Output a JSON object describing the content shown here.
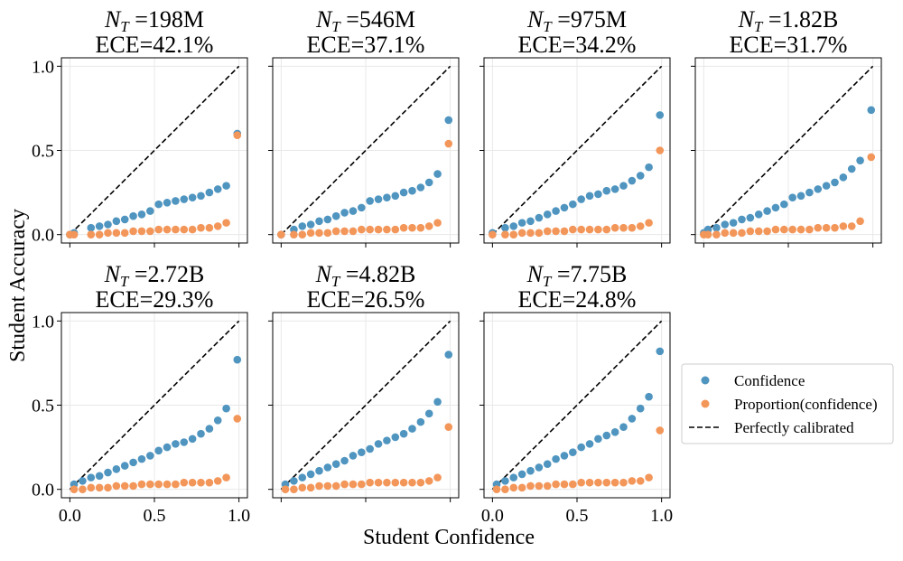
{
  "figure": {
    "ylabel": "Student Accuracy",
    "xlabel": "Student Confidence",
    "colors": {
      "confidence": "#4f95c0",
      "proportion": "#f3965a",
      "diagonal": "#000000",
      "grid": "#e8e8e8",
      "axes": "#000000"
    },
    "legend": {
      "items": [
        "Confidence",
        "Proportion(confidence)",
        "Perfectly calibrated"
      ]
    }
  },
  "chart_data": [
    {
      "type": "scatter",
      "title_nt": "198M",
      "title_ece": "ECE=42.1%",
      "xlim": [
        -0.05,
        1.05
      ],
      "ylim": [
        -0.05,
        1.05
      ],
      "xticks": [
        "0.0",
        "0.5",
        "1.0"
      ],
      "yticks": [
        "0.0",
        "0.5",
        "1.0"
      ],
      "show_xticklabels": false,
      "show_yticklabels": true,
      "series": [
        {
          "name": "Confidence",
          "x": [
            0.0,
            0.025,
            0.125,
            0.175,
            0.225,
            0.275,
            0.325,
            0.375,
            0.425,
            0.475,
            0.525,
            0.575,
            0.625,
            0.675,
            0.725,
            0.775,
            0.825,
            0.875,
            0.925,
            0.99
          ],
          "y": [
            0.0,
            0.01,
            0.04,
            0.05,
            0.06,
            0.08,
            0.09,
            0.11,
            0.12,
            0.14,
            0.18,
            0.19,
            0.2,
            0.21,
            0.22,
            0.23,
            0.25,
            0.27,
            0.29,
            0.6
          ]
        },
        {
          "name": "Proportion(confidence)",
          "x": [
            0.0,
            0.025,
            0.125,
            0.175,
            0.225,
            0.275,
            0.325,
            0.375,
            0.425,
            0.475,
            0.525,
            0.575,
            0.625,
            0.675,
            0.725,
            0.775,
            0.825,
            0.875,
            0.925,
            0.99
          ],
          "y": [
            0.0,
            0.0,
            0.0,
            0.0,
            0.01,
            0.01,
            0.01,
            0.02,
            0.02,
            0.02,
            0.03,
            0.03,
            0.03,
            0.03,
            0.03,
            0.04,
            0.04,
            0.05,
            0.07,
            0.59
          ]
        }
      ]
    },
    {
      "type": "scatter",
      "title_nt": "546M",
      "title_ece": "ECE=37.1%",
      "xlim": [
        -0.05,
        1.05
      ],
      "ylim": [
        -0.05,
        1.05
      ],
      "xticks": [
        "0.0",
        "0.5",
        "1.0"
      ],
      "yticks": [
        "0.0",
        "0.5",
        "1.0"
      ],
      "show_xticklabels": false,
      "show_yticklabels": false,
      "series": [
        {
          "name": "Confidence",
          "x": [
            0.0,
            0.075,
            0.125,
            0.175,
            0.225,
            0.275,
            0.325,
            0.375,
            0.425,
            0.475,
            0.525,
            0.575,
            0.625,
            0.675,
            0.725,
            0.775,
            0.825,
            0.875,
            0.925,
            0.99
          ],
          "y": [
            0.0,
            0.03,
            0.05,
            0.06,
            0.08,
            0.09,
            0.11,
            0.13,
            0.14,
            0.16,
            0.2,
            0.21,
            0.22,
            0.23,
            0.25,
            0.26,
            0.28,
            0.31,
            0.36,
            0.68
          ]
        },
        {
          "name": "Proportion(confidence)",
          "x": [
            0.0,
            0.075,
            0.125,
            0.175,
            0.225,
            0.275,
            0.325,
            0.375,
            0.425,
            0.475,
            0.525,
            0.575,
            0.625,
            0.675,
            0.725,
            0.775,
            0.825,
            0.875,
            0.925,
            0.99
          ],
          "y": [
            0.0,
            0.0,
            0.0,
            0.01,
            0.01,
            0.01,
            0.02,
            0.02,
            0.02,
            0.03,
            0.03,
            0.03,
            0.03,
            0.03,
            0.04,
            0.04,
            0.04,
            0.05,
            0.07,
            0.54
          ]
        }
      ]
    },
    {
      "type": "scatter",
      "title_nt": "975M",
      "title_ece": "ECE=34.2%",
      "xlim": [
        -0.05,
        1.05
      ],
      "ylim": [
        -0.05,
        1.05
      ],
      "xticks": [
        "0.0",
        "0.5",
        "1.0"
      ],
      "yticks": [
        "0.0",
        "0.5",
        "1.0"
      ],
      "show_xticklabels": false,
      "show_yticklabels": false,
      "series": [
        {
          "name": "Confidence",
          "x": [
            0.0,
            0.075,
            0.125,
            0.175,
            0.225,
            0.275,
            0.325,
            0.375,
            0.425,
            0.475,
            0.525,
            0.575,
            0.625,
            0.675,
            0.725,
            0.775,
            0.825,
            0.875,
            0.925,
            0.99
          ],
          "y": [
            0.01,
            0.04,
            0.05,
            0.07,
            0.08,
            0.1,
            0.12,
            0.14,
            0.16,
            0.18,
            0.21,
            0.23,
            0.24,
            0.26,
            0.27,
            0.29,
            0.32,
            0.35,
            0.4,
            0.71
          ]
        },
        {
          "name": "Proportion(confidence)",
          "x": [
            0.0,
            0.075,
            0.125,
            0.175,
            0.225,
            0.275,
            0.325,
            0.375,
            0.425,
            0.475,
            0.525,
            0.575,
            0.625,
            0.675,
            0.725,
            0.775,
            0.825,
            0.875,
            0.925,
            0.99
          ],
          "y": [
            0.0,
            0.0,
            0.0,
            0.01,
            0.01,
            0.01,
            0.02,
            0.02,
            0.02,
            0.03,
            0.03,
            0.03,
            0.03,
            0.03,
            0.04,
            0.04,
            0.04,
            0.05,
            0.07,
            0.5
          ]
        }
      ]
    },
    {
      "type": "scatter",
      "title_nt": "1.82B",
      "title_ece": "ECE=31.7%",
      "xlim": [
        -0.05,
        1.05
      ],
      "ylim": [
        -0.05,
        1.05
      ],
      "xticks": [
        "0.0",
        "0.5",
        "1.0"
      ],
      "yticks": [
        "0.0",
        "0.5",
        "1.0"
      ],
      "show_xticklabels": false,
      "show_yticklabels": false,
      "series": [
        {
          "name": "Confidence",
          "x": [
            0.0,
            0.025,
            0.075,
            0.125,
            0.175,
            0.225,
            0.275,
            0.325,
            0.375,
            0.425,
            0.475,
            0.525,
            0.575,
            0.625,
            0.675,
            0.725,
            0.775,
            0.825,
            0.875,
            0.925,
            0.99
          ],
          "y": [
            0.01,
            0.03,
            0.04,
            0.06,
            0.07,
            0.09,
            0.1,
            0.12,
            0.14,
            0.16,
            0.18,
            0.22,
            0.23,
            0.25,
            0.27,
            0.29,
            0.31,
            0.34,
            0.39,
            0.44,
            0.74
          ]
        },
        {
          "name": "Proportion(confidence)",
          "x": [
            0.0,
            0.025,
            0.075,
            0.125,
            0.175,
            0.225,
            0.275,
            0.325,
            0.375,
            0.425,
            0.475,
            0.525,
            0.575,
            0.625,
            0.675,
            0.725,
            0.775,
            0.825,
            0.875,
            0.925,
            0.99
          ],
          "y": [
            0.0,
            0.0,
            0.0,
            0.01,
            0.01,
            0.01,
            0.02,
            0.02,
            0.02,
            0.03,
            0.03,
            0.03,
            0.03,
            0.03,
            0.04,
            0.04,
            0.04,
            0.05,
            0.05,
            0.08,
            0.46
          ]
        }
      ]
    },
    {
      "type": "scatter",
      "title_nt": "2.72B",
      "title_ece": "ECE=29.3%",
      "xlim": [
        -0.05,
        1.05
      ],
      "ylim": [
        -0.05,
        1.05
      ],
      "xticks": [
        "0.0",
        "0.5",
        "1.0"
      ],
      "yticks": [
        "0.0",
        "0.5",
        "1.0"
      ],
      "show_xticklabels": true,
      "show_yticklabels": true,
      "series": [
        {
          "name": "Confidence",
          "x": [
            0.025,
            0.075,
            0.125,
            0.175,
            0.225,
            0.275,
            0.325,
            0.375,
            0.425,
            0.475,
            0.525,
            0.575,
            0.625,
            0.675,
            0.725,
            0.775,
            0.825,
            0.875,
            0.925,
            0.99
          ],
          "y": [
            0.03,
            0.05,
            0.07,
            0.08,
            0.1,
            0.12,
            0.14,
            0.16,
            0.18,
            0.2,
            0.23,
            0.25,
            0.27,
            0.28,
            0.3,
            0.33,
            0.36,
            0.41,
            0.48,
            0.77
          ]
        },
        {
          "name": "Proportion(confidence)",
          "x": [
            0.025,
            0.075,
            0.125,
            0.175,
            0.225,
            0.275,
            0.325,
            0.375,
            0.425,
            0.475,
            0.525,
            0.575,
            0.625,
            0.675,
            0.725,
            0.775,
            0.825,
            0.875,
            0.925,
            0.99
          ],
          "y": [
            0.0,
            0.0,
            0.01,
            0.01,
            0.01,
            0.02,
            0.02,
            0.02,
            0.03,
            0.03,
            0.03,
            0.03,
            0.03,
            0.04,
            0.04,
            0.04,
            0.04,
            0.05,
            0.07,
            0.42
          ]
        }
      ]
    },
    {
      "type": "scatter",
      "title_nt": "4.82B",
      "title_ece": "ECE=26.5%",
      "xlim": [
        -0.05,
        1.05
      ],
      "ylim": [
        -0.05,
        1.05
      ],
      "xticks": [
        "0.0",
        "0.5",
        "1.0"
      ],
      "yticks": [
        "0.0",
        "0.5",
        "1.0"
      ],
      "show_xticklabels": false,
      "show_yticklabels": false,
      "series": [
        {
          "name": "Confidence",
          "x": [
            0.025,
            0.075,
            0.125,
            0.175,
            0.225,
            0.275,
            0.325,
            0.375,
            0.425,
            0.475,
            0.525,
            0.575,
            0.625,
            0.675,
            0.725,
            0.775,
            0.825,
            0.875,
            0.925,
            0.99
          ],
          "y": [
            0.03,
            0.05,
            0.07,
            0.09,
            0.11,
            0.13,
            0.15,
            0.17,
            0.2,
            0.22,
            0.24,
            0.27,
            0.29,
            0.31,
            0.33,
            0.36,
            0.4,
            0.45,
            0.52,
            0.8
          ]
        },
        {
          "name": "Proportion(confidence)",
          "x": [
            0.025,
            0.075,
            0.125,
            0.175,
            0.225,
            0.275,
            0.325,
            0.375,
            0.425,
            0.475,
            0.525,
            0.575,
            0.625,
            0.675,
            0.725,
            0.775,
            0.825,
            0.875,
            0.925,
            0.99
          ],
          "y": [
            0.0,
            0.0,
            0.01,
            0.01,
            0.02,
            0.02,
            0.02,
            0.03,
            0.03,
            0.03,
            0.04,
            0.04,
            0.04,
            0.04,
            0.04,
            0.04,
            0.04,
            0.05,
            0.07,
            0.37
          ]
        }
      ]
    },
    {
      "type": "scatter",
      "title_nt": "7.75B",
      "title_ece": "ECE=24.8%",
      "xlim": [
        -0.05,
        1.05
      ],
      "ylim": [
        -0.05,
        1.05
      ],
      "xticks": [
        "0.0",
        "0.5",
        "1.0"
      ],
      "yticks": [
        "0.0",
        "0.5",
        "1.0"
      ],
      "show_xticklabels": true,
      "show_yticklabels": false,
      "series": [
        {
          "name": "Confidence",
          "x": [
            0.025,
            0.075,
            0.125,
            0.175,
            0.225,
            0.275,
            0.325,
            0.375,
            0.425,
            0.475,
            0.525,
            0.575,
            0.625,
            0.675,
            0.725,
            0.775,
            0.825,
            0.875,
            0.925,
            0.99
          ],
          "y": [
            0.03,
            0.05,
            0.07,
            0.09,
            0.11,
            0.13,
            0.15,
            0.18,
            0.2,
            0.22,
            0.25,
            0.27,
            0.3,
            0.32,
            0.34,
            0.37,
            0.42,
            0.48,
            0.55,
            0.82
          ]
        },
        {
          "name": "Proportion(confidence)",
          "x": [
            0.025,
            0.075,
            0.125,
            0.175,
            0.225,
            0.275,
            0.325,
            0.375,
            0.425,
            0.475,
            0.525,
            0.575,
            0.625,
            0.675,
            0.725,
            0.775,
            0.825,
            0.875,
            0.925,
            0.99
          ],
          "y": [
            0.0,
            0.0,
            0.01,
            0.01,
            0.02,
            0.02,
            0.02,
            0.03,
            0.03,
            0.03,
            0.04,
            0.04,
            0.04,
            0.04,
            0.04,
            0.04,
            0.05,
            0.05,
            0.07,
            0.35
          ]
        }
      ]
    }
  ]
}
